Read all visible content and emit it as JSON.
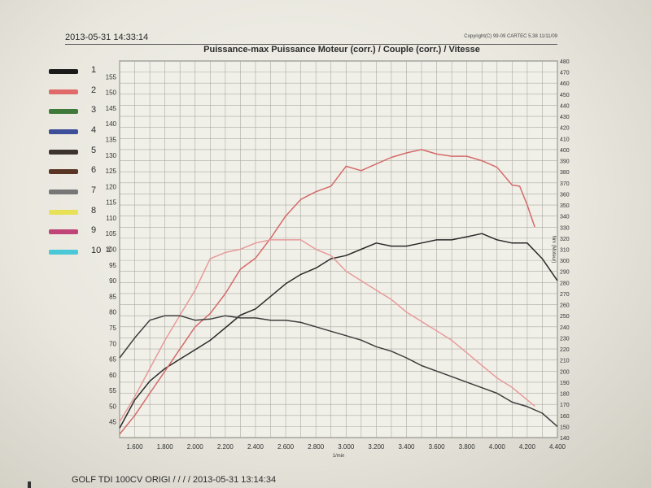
{
  "header": {
    "timestamp": "2013-05-31 14:33:14",
    "copyright": "Copyright(C) 99-09 CARTEC 5.38  11/11/09"
  },
  "footer": {
    "text": "GOLF TDI 100CV ORIGI / / / / 2013-05-31 13:14:34"
  },
  "legend": [
    {
      "label": "1",
      "color": "#1a1a1a"
    },
    {
      "label": "2",
      "color": "#e06a6a"
    },
    {
      "label": "3",
      "color": "#3f7a3a"
    },
    {
      "label": "4",
      "color": "#3e4f99"
    },
    {
      "label": "5",
      "color": "#3d332e"
    },
    {
      "label": "6",
      "color": "#5a3525"
    },
    {
      "label": "7",
      "color": "#777777"
    },
    {
      "label": "8",
      "color": "#e8e055"
    },
    {
      "label": "9",
      "color": "#c04478"
    },
    {
      "label": "10",
      "color": "#4ac8d8"
    }
  ],
  "chart_data": {
    "type": "line",
    "title": "Puissance-max Puissance Moteur (corr.) / Couple (corr.) / Vitesse",
    "xlabel": "1/min",
    "ylabel_left": "PS",
    "ylabel_right": "Nm (Moteur)",
    "xlim": [
      1500,
      4400
    ],
    "ylim_left": [
      40,
      160
    ],
    "ylim_right": [
      140,
      480
    ],
    "x_ticks": [
      1600,
      1800,
      2000,
      2200,
      2400,
      2600,
      2800,
      3000,
      3200,
      3400,
      3600,
      3800,
      4000,
      4200,
      4400
    ],
    "x_tick_labels": [
      "1.600",
      "1.800",
      "2.000",
      "2.200",
      "2.400",
      "2.600",
      "2.800",
      "3.000",
      "3.200",
      "3.400",
      "3.600",
      "3.800",
      "4.000",
      "4.200",
      "4.400"
    ],
    "left_ticks": [
      45,
      50,
      55,
      60,
      65,
      70,
      75,
      80,
      85,
      90,
      95,
      100,
      105,
      110,
      115,
      120,
      125,
      130,
      135,
      140,
      145,
      150,
      155
    ],
    "right_ticks": [
      140,
      150,
      160,
      170,
      180,
      190,
      200,
      210,
      220,
      230,
      240,
      250,
      260,
      270,
      280,
      290,
      300,
      310,
      320,
      330,
      340,
      350,
      360,
      370,
      380,
      390,
      400,
      410,
      420,
      430,
      440,
      450,
      460,
      470,
      480
    ],
    "grid": true,
    "series": [
      {
        "color": "#2a2a2a",
        "axis": "left",
        "x": [
          1500,
          1600,
          1700,
          1800,
          1900,
          2000,
          2100,
          2200,
          2300,
          2400,
          2500,
          2600,
          2700,
          2800,
          2900,
          3000,
          3100,
          3200,
          3300,
          3400,
          3500,
          3600,
          3700,
          3800,
          3900,
          4000,
          4100,
          4200,
          4300,
          4400
        ],
        "y": [
          43,
          52,
          58,
          62,
          65,
          68,
          71,
          75,
          79,
          81,
          85,
          89,
          92,
          94,
          97,
          98,
          100,
          102,
          101,
          101,
          102,
          103,
          103,
          104,
          105,
          103,
          102,
          102,
          97,
          90
        ]
      },
      {
        "color": "#d46a6a",
        "axis": "right",
        "x": [
          1500,
          1600,
          1700,
          1800,
          1900,
          2000,
          2100,
          2200,
          2300,
          2400,
          2500,
          2600,
          2700,
          2800,
          2900,
          3000,
          3100,
          3200,
          3300,
          3400,
          3500,
          3600,
          3700,
          3800,
          3900,
          4000,
          4100,
          4150,
          4200,
          4250
        ],
        "y": [
          143,
          160,
          180,
          200,
          220,
          240,
          252,
          270,
          292,
          302,
          320,
          340,
          355,
          362,
          367,
          385,
          381,
          387,
          393,
          397,
          400,
          396,
          394,
          394,
          390,
          384,
          368,
          367,
          350,
          330
        ]
      },
      {
        "color": "#e79a9a",
        "axis": "left",
        "x": [
          1500,
          1600,
          1700,
          1800,
          1900,
          2000,
          2100,
          2200,
          2300,
          2400,
          2500,
          2600,
          2700,
          2800,
          2900,
          3000,
          3100,
          3200,
          3300,
          3400,
          3500,
          3600,
          3700,
          3800,
          3900,
          4000,
          4100,
          4200,
          4250
        ],
        "y": [
          45,
          53,
          62,
          71,
          79,
          87,
          97,
          99,
          100,
          102,
          103,
          103,
          103,
          100,
          98,
          93,
          90,
          87,
          84,
          80,
          77,
          74,
          71,
          67,
          63,
          59,
          56,
          52,
          50
        ]
      },
      {
        "color": "#3d3d3d",
        "axis": "right",
        "x": [
          1500,
          1600,
          1700,
          1800,
          1900,
          2000,
          2100,
          2200,
          2300,
          2400,
          2500,
          2600,
          2700,
          2800,
          2900,
          3000,
          3100,
          3200,
          3300,
          3400,
          3500,
          3600,
          3700,
          3800,
          3900,
          4000,
          4100,
          4200,
          4300,
          4400
        ],
        "y": [
          212,
          230,
          246,
          250,
          250,
          246,
          247,
          250,
          248,
          248,
          246,
          246,
          244,
          240,
          236,
          232,
          228,
          222,
          218,
          212,
          205,
          200,
          195,
          190,
          185,
          180,
          172,
          168,
          162,
          150
        ]
      }
    ]
  }
}
